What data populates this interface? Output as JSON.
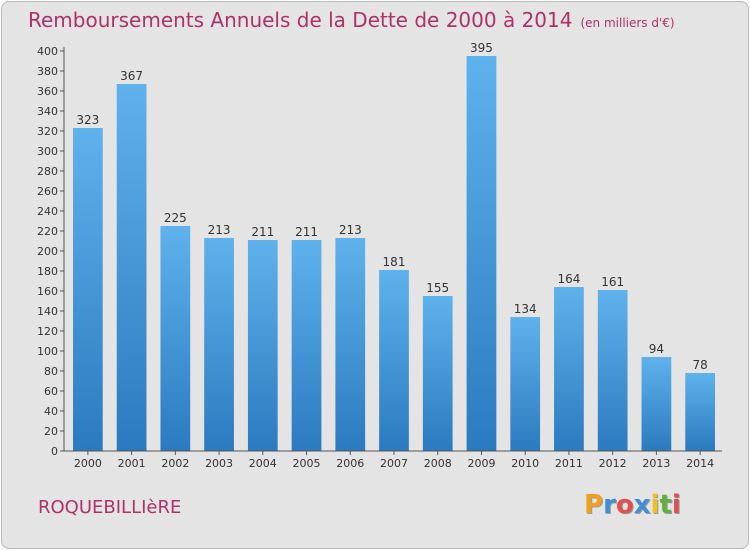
{
  "chart_data": {
    "type": "bar",
    "title": "Remboursements Annuels de la Dette de 2000 à 2014",
    "subtitle": "(en milliers d'€)",
    "categories": [
      "2000",
      "2001",
      "2002",
      "2003",
      "2004",
      "2005",
      "2006",
      "2007",
      "2008",
      "2009",
      "2010",
      "2011",
      "2012",
      "2013",
      "2014"
    ],
    "values": [
      323,
      367,
      225,
      213,
      211,
      211,
      213,
      181,
      155,
      395,
      134,
      164,
      161,
      94,
      78
    ],
    "ylim": [
      0,
      400
    ],
    "ytick_step": 20,
    "grid": false,
    "bar_color_top": "#5fb2ec",
    "bar_color_bottom": "#2b7ac0"
  },
  "commune": "ROQUEBILLIèRE",
  "logo": {
    "letters": [
      "P",
      "r",
      "o",
      "x",
      "i",
      "t",
      "i"
    ],
    "colors": [
      "#f0a020",
      "#3f8fd8",
      "#e05050",
      "#3f8fd8",
      "#f0c020",
      "#60b040",
      "#e05050"
    ]
  }
}
